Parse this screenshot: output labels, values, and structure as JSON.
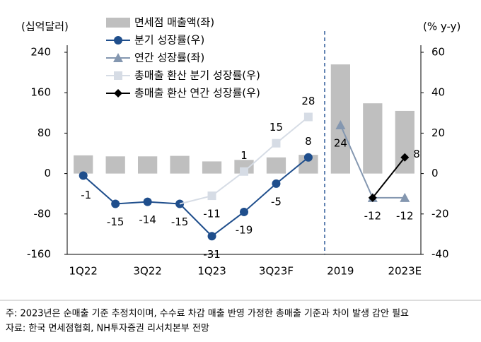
{
  "chart_data": {
    "type": "bar",
    "y_label": "(십억달러)",
    "y2_label": "(% y-y)",
    "categories": [
      "1Q22",
      null,
      "3Q22",
      null,
      "1Q23",
      null,
      "3Q23F",
      null,
      "2019",
      null,
      "2023E"
    ],
    "ylim": [
      -160,
      240
    ],
    "yticks": [
      -160,
      -80,
      0,
      80,
      160,
      240
    ],
    "y2lim": [
      -40,
      60
    ],
    "y2ticks": [
      -40,
      -20,
      0,
      20,
      40,
      60
    ],
    "series": [
      {
        "name": "면세점 매출액(좌)",
        "type": "bar",
        "color": "#bfbfbf",
        "values": [
          36,
          34,
          34,
          35,
          24,
          27,
          32,
          37,
          216,
          139,
          124
        ]
      },
      {
        "name": "분기 성장률(우)",
        "type": "line",
        "marker": "circle",
        "axis": "y2",
        "color": "#1f4e8c",
        "values": [
          -1,
          -15,
          -14,
          -15,
          -31,
          -19,
          -5,
          8,
          null,
          null,
          null
        ],
        "value_labels": [
          "-1",
          "-15",
          "-14",
          "-15",
          "-31",
          "-19",
          "-5",
          "8",
          null,
          null,
          null
        ]
      },
      {
        "name": "연간 성장률(좌)",
        "type": "line",
        "marker": "triangle",
        "axis": "y2",
        "color": "#8497b0",
        "values": [
          null,
          null,
          null,
          null,
          null,
          null,
          null,
          null,
          24,
          -12,
          -12
        ],
        "value_labels": [
          null,
          null,
          null,
          null,
          null,
          null,
          null,
          null,
          "24",
          "-12",
          "-12"
        ]
      },
      {
        "name": "총매출 환산 분기 성장률(우)",
        "type": "line",
        "marker": "square",
        "axis": "y2",
        "color": "#d6dce5",
        "values": [
          null,
          null,
          null,
          -15,
          -11,
          1,
          15,
          28,
          null,
          null,
          null
        ],
        "value_labels": [
          null,
          null,
          null,
          null,
          "-11",
          "1",
          "15",
          "28",
          null,
          null,
          null
        ]
      },
      {
        "name": "총매출 환산 연간 성장률(우)",
        "type": "line",
        "marker": "diamond",
        "axis": "y2",
        "color": "#000000",
        "values": [
          null,
          null,
          null,
          null,
          null,
          null,
          null,
          null,
          null,
          -12,
          8
        ],
        "value_labels": [
          null,
          null,
          null,
          null,
          null,
          null,
          null,
          null,
          null,
          null,
          "8"
        ]
      }
    ],
    "notes": [
      "주: 2023년은 순매출 기준 추정치이며, 수수료 차감 매출 반영 가정한 총매출 기준과 차이 발생 감안 필요",
      "자료: 한국 면세점협회, NH투자증권 리서치본부 전망"
    ]
  }
}
